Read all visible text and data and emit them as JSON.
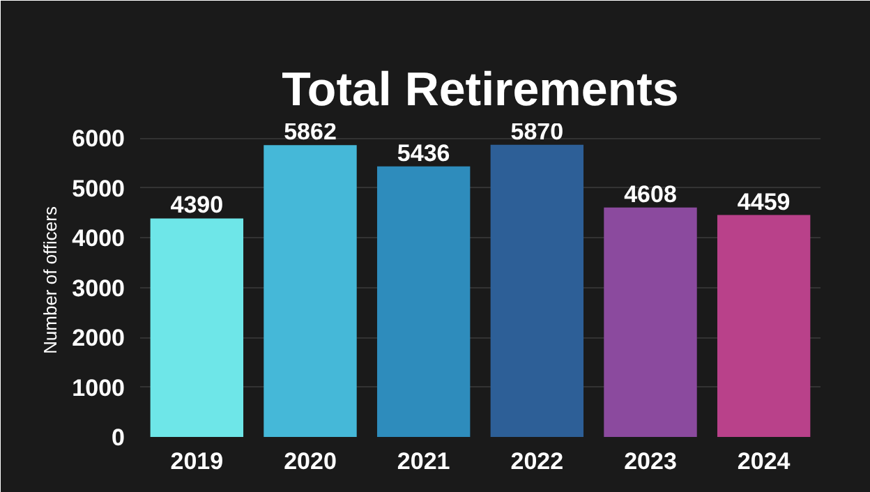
{
  "chart_data": {
    "type": "bar",
    "title": "Total Retirements",
    "ylabel": "Number of officers",
    "categories": [
      "2019",
      "2020",
      "2021",
      "2022",
      "2023",
      "2024"
    ],
    "values": [
      4390,
      5862,
      5436,
      5870,
      4608,
      4459
    ],
    "colors": [
      "#6ee6e8",
      "#45b8d8",
      "#2e8cbc",
      "#2d5f97",
      "#8b4a9e",
      "#b9418a"
    ],
    "ylim": [
      0,
      6300
    ],
    "yticks": [
      0,
      1000,
      2000,
      3000,
      4000,
      5000,
      6000
    ],
    "grid": "y",
    "data_labels": true
  }
}
